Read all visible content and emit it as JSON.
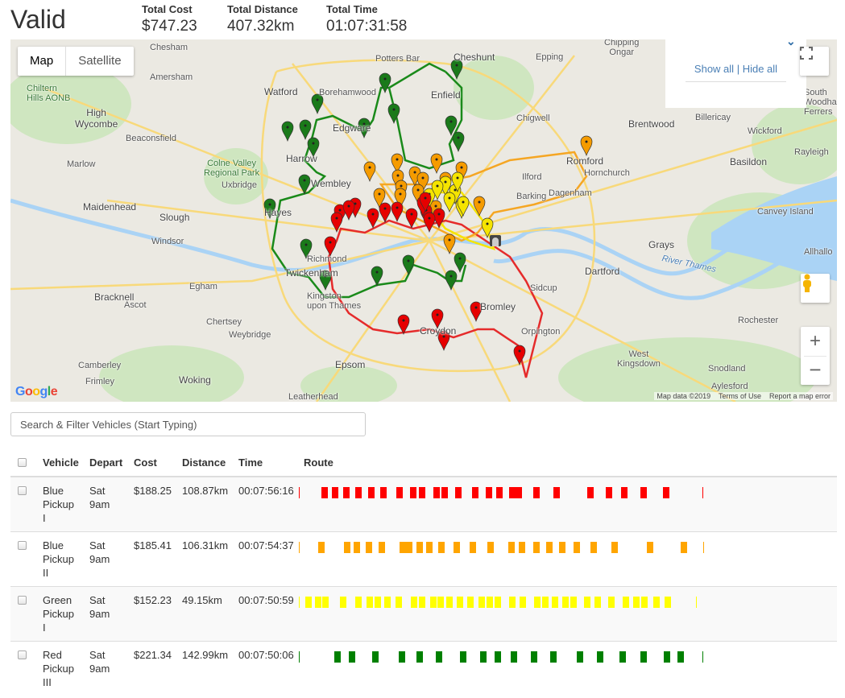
{
  "header": {
    "title": "Valid",
    "stats": [
      {
        "label": "Total Cost",
        "value": "$747.23"
      },
      {
        "label": "Total Distance",
        "value": "407.32km"
      },
      {
        "label": "Total Time",
        "value": "01:07:31:58"
      }
    ]
  },
  "map": {
    "type_buttons": {
      "map": "Map",
      "satellite": "Satellite"
    },
    "show_all": "Show all",
    "separator": "|",
    "hide_all": "Hide all",
    "attribution": {
      "data": "Map data ©2019",
      "terms": "Terms of Use",
      "report": "Report a map error"
    },
    "logo": "Google",
    "labels": {
      "watford": "Watford",
      "enfield": "Enfield",
      "cheshunt": "Cheshunt",
      "potters_bar": "Potters Bar",
      "borehamwood": "Borehamwood",
      "edgware": "Edgware",
      "harrow": "Harrow",
      "wembley": "Wembley",
      "hayes": "Hayes",
      "uxbridge": "Uxbridge",
      "slough": "Slough",
      "maidenhead": "Maidenhead",
      "high_wycombe": "High\nWycombe",
      "beaconsfield": "Beaconsfield",
      "amersham": "Amersham",
      "chesham": "Chesham",
      "chigwell": "Chigwell",
      "ilford": "Ilford",
      "barking": "Barking",
      "dagenham": "Dagenham",
      "romford": "Romford",
      "hornchurch": "Hornchurch",
      "brentwood": "Brentwood",
      "billericay": "Billericay",
      "wickford": "Wickford",
      "rayleigh": "Rayleigh",
      "basildon": "Basildon",
      "canvey": "Canvey Island",
      "grays": "Grays",
      "dartford": "Dartford",
      "river_thames": "River Thames",
      "sidcup": "Sidcup",
      "bromley": "Bromley",
      "orpington": "Orpington",
      "croydon": "Croydon",
      "epsom": "Epsom",
      "kingston": "Kingston\nupon Thames",
      "richmond": "Richmond",
      "twickenham": "Twickenham",
      "egham": "Egham",
      "chertsey": "Chertsey",
      "weybridge": "Weybridge",
      "woking": "Woking",
      "leatherhead": "Leatherhead",
      "windsor": "Windsor",
      "bracknell": "Bracknell",
      "ascot": "Ascot",
      "camberley": "Camberley",
      "frimley": "Frimley",
      "marlow": "Marlow",
      "rochester": "Rochester",
      "snodland": "Snodland",
      "west_kingsdown": "West\nKingsdown",
      "epping": "Epping",
      "chipping_ongar": "Chipping\nOngar",
      "colne_valley": "Colne Valley\nRegional Park",
      "chiltern": "Chiltern\nHills AONB",
      "allhallows": "Allhallo",
      "south_woodham": "South\nWoodham\nFerrers",
      "aylesford": "Aylesford"
    }
  },
  "search": {
    "placeholder": "Search & Filter Vehicles (Start Typing)",
    "value": ""
  },
  "table": {
    "headers": {
      "vehicle": "Vehicle",
      "depart": "Depart",
      "cost": "Cost",
      "distance": "Distance",
      "time": "Time",
      "route": "Route"
    },
    "rows": [
      {
        "vehicle": "Blue Pickup I",
        "depart": "Sat 9am",
        "cost": "$188.25",
        "distance": "108.87km",
        "time": "00:07:56:16",
        "color": "#ff0000"
      },
      {
        "vehicle": "Blue Pickup II",
        "depart": "Sat 9am",
        "cost": "$185.41",
        "distance": "106.31km",
        "time": "00:07:54:37",
        "color": "#ffa500"
      },
      {
        "vehicle": "Green Pickup I",
        "depart": "Sat 9am",
        "cost": "$152.23",
        "distance": "49.15km",
        "time": "00:07:50:59",
        "color": "#ffff00"
      },
      {
        "vehicle": "Red Pickup III",
        "depart": "Sat 9am",
        "cost": "$221.34",
        "distance": "142.99km",
        "time": "00:07:50:06",
        "color": "#008000"
      }
    ]
  }
}
